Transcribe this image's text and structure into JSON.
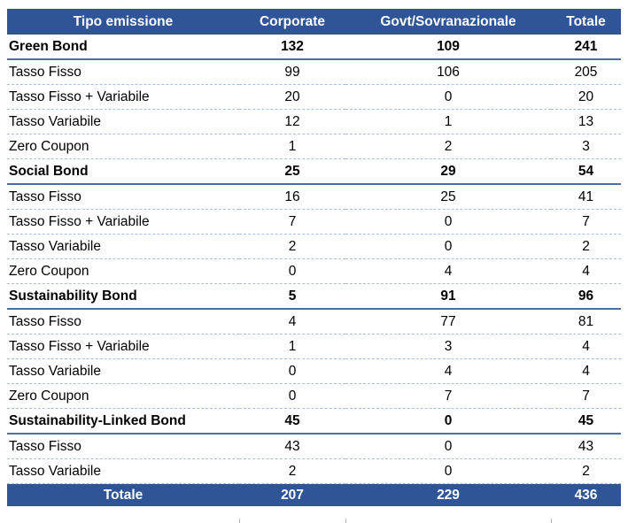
{
  "colors": {
    "header_bg": "#2F5597",
    "header_text": "#FFFFFF",
    "section_border": "#4A6FA5",
    "row_divider": "#A6BFE3",
    "body_text": "#000000"
  },
  "chart_data": {
    "type": "table",
    "columns": [
      "Tipo emissione",
      "Corporate",
      "Govt/Sovranazionale",
      "Totale"
    ],
    "rows": [
      {
        "label": "Green Bond",
        "bold": true,
        "values": [
          132,
          109,
          241
        ]
      },
      {
        "label": "Tasso Fisso",
        "bold": false,
        "values": [
          99,
          106,
          205
        ]
      },
      {
        "label": "Tasso Fisso + Variabile",
        "bold": false,
        "values": [
          20,
          0,
          20
        ]
      },
      {
        "label": "Tasso Variabile",
        "bold": false,
        "values": [
          12,
          1,
          13
        ]
      },
      {
        "label": "Zero Coupon",
        "bold": false,
        "values": [
          1,
          2,
          3
        ]
      },
      {
        "label": "Social Bond",
        "bold": true,
        "values": [
          25,
          29,
          54
        ]
      },
      {
        "label": "Tasso Fisso",
        "bold": false,
        "values": [
          16,
          25,
          41
        ]
      },
      {
        "label": "Tasso Fisso + Variabile",
        "bold": false,
        "values": [
          7,
          0,
          7
        ]
      },
      {
        "label": "Tasso Variabile",
        "bold": false,
        "values": [
          2,
          0,
          2
        ]
      },
      {
        "label": "Zero Coupon",
        "bold": false,
        "values": [
          0,
          4,
          4
        ]
      },
      {
        "label": "Sustainability Bond",
        "bold": true,
        "values": [
          5,
          91,
          96
        ]
      },
      {
        "label": "Tasso Fisso",
        "bold": false,
        "values": [
          4,
          77,
          81
        ]
      },
      {
        "label": "Tasso Fisso + Variabile",
        "bold": false,
        "values": [
          1,
          3,
          4
        ]
      },
      {
        "label": "Tasso Variabile",
        "bold": false,
        "values": [
          0,
          4,
          4
        ]
      },
      {
        "label": "Zero Coupon",
        "bold": false,
        "values": [
          0,
          7,
          7
        ]
      },
      {
        "label": "Sustainability-Linked Bond",
        "bold": true,
        "values": [
          45,
          0,
          45
        ]
      },
      {
        "label": "Tasso Fisso",
        "bold": false,
        "values": [
          43,
          0,
          43
        ]
      },
      {
        "label": "Tasso Variabile",
        "bold": false,
        "values": [
          2,
          0,
          2
        ]
      }
    ],
    "footer": {
      "label": "Totale",
      "values": [
        207,
        229,
        436
      ]
    }
  }
}
